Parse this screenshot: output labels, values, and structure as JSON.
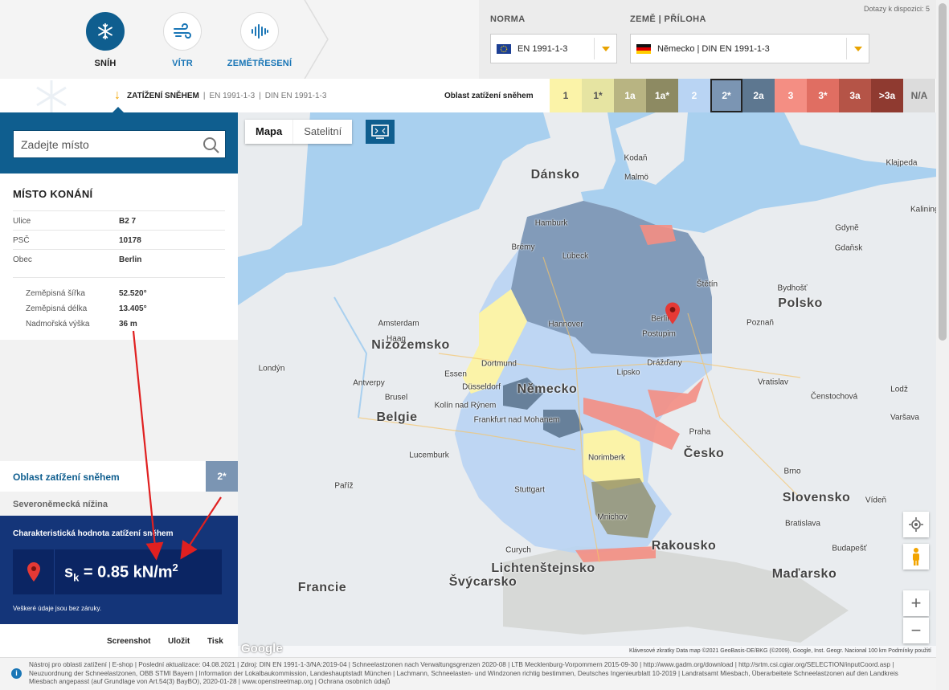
{
  "header": {
    "quota": "Dotazy k dispozici: 5",
    "modes": [
      {
        "label": "SNÍH",
        "icon": "snowflake-icon"
      },
      {
        "label": "VÍTR",
        "icon": "wind-icon"
      },
      {
        "label": "ZEMĚTŘESENÍ",
        "icon": "seismograph-icon"
      }
    ],
    "norma_label": "NORMA",
    "norma_value": "EN 1991-1-3",
    "zeme_label": "ZEMĚ | PŘÍLOHA",
    "zeme_value": "Německo | DIN EN 1991-1-3"
  },
  "bar": {
    "title": "ZATÍŽENÍ SNĚHEM",
    "norm1": "EN 1991-1-3",
    "norm2": "DIN EN 1991-1-3",
    "zones_label": "Oblast zatížení sněhem",
    "zones": [
      {
        "label": "1",
        "color": "#fbf3a8",
        "text": "#555"
      },
      {
        "label": "1*",
        "color": "#e6e4a2",
        "text": "#555"
      },
      {
        "label": "1a",
        "color": "#b8b482",
        "text": "#fff"
      },
      {
        "label": "1a*",
        "color": "#8d8a62",
        "text": "#fff"
      },
      {
        "label": "2",
        "color": "#b9d4f3",
        "text": "#fff"
      },
      {
        "label": "2*",
        "color": "#7b95b3",
        "text": "#fff",
        "selected": true
      },
      {
        "label": "2a",
        "color": "#5d7790",
        "text": "#fff"
      },
      {
        "label": "3",
        "color": "#f48e83",
        "text": "#fff"
      },
      {
        "label": "3*",
        "color": "#e06e62",
        "text": "#fff"
      },
      {
        "label": "3a",
        "color": "#b55447",
        "text": "#fff"
      },
      {
        "label": ">3a",
        "color": "#8f3a30",
        "text": "#fff"
      },
      {
        "label": "N/A",
        "color": "#dcdcdc",
        "text": "#666"
      }
    ]
  },
  "search": {
    "placeholder": "Zadejte místo"
  },
  "place": {
    "title": "MÍSTO KONÁNÍ",
    "rows": [
      {
        "k": "Ulice",
        "v": "B2 7"
      },
      {
        "k": "PSČ",
        "v": "10178"
      },
      {
        "k": "Obec",
        "v": "Berlin"
      }
    ],
    "coords": [
      {
        "k": "Zeměpisná šířka",
        "v": "52.520°"
      },
      {
        "k": "Zeměpisná délka",
        "v": "13.405°"
      },
      {
        "k": "Nadmořská výška",
        "v": "36 m"
      }
    ]
  },
  "zone_result": {
    "title": "Oblast zatížení sněhem",
    "badge": "2*",
    "region": "Severoněmecká nížina"
  },
  "result": {
    "heading": "Charakteristická hodnota zatížení sněhem",
    "symbol": "s",
    "subscript": "k",
    "value": " = 0.85 kN/m",
    "exponent": "2",
    "note": "Veškeré údaje jsou bez záruky."
  },
  "actions": {
    "screenshot": "Screenshot",
    "print": "Tisk",
    "save": "Uložit"
  },
  "map": {
    "type_map": "Mapa",
    "type_sat": "Satelitní",
    "google": "Google",
    "attribution": "Klávesové zkratky   Data map ©2021 GeoBasis-DE/BKG (©2009), Google, Inst. Geogr. Nacional   100 km   Podmínky použití",
    "country_labels": [
      {
        "t": "Dánsko"
      },
      {
        "t": "Nizozemsko"
      },
      {
        "t": "Belgie"
      },
      {
        "t": "Německo"
      },
      {
        "t": "Polsko"
      },
      {
        "t": "Česko"
      },
      {
        "t": "Slovensko"
      },
      {
        "t": "Rakousko"
      },
      {
        "t": "Maďarsko"
      },
      {
        "t": "Švýcarsko"
      },
      {
        "t": "Francie"
      },
      {
        "t": "Lichtenštejnsko"
      }
    ],
    "city_labels": [
      {
        "t": "Kodaň"
      },
      {
        "t": "Malmö"
      },
      {
        "t": "Hamburk"
      },
      {
        "t": "Brémy"
      },
      {
        "t": "Berlin"
      },
      {
        "t": "Postupim"
      },
      {
        "t": "Hannover"
      },
      {
        "t": "Amsterdam"
      },
      {
        "t": "Haag"
      },
      {
        "t": "Dortmund"
      },
      {
        "t": "Essen"
      },
      {
        "t": "Düsseldorf"
      },
      {
        "t": "Kolín nad Rýnem"
      },
      {
        "t": "Frankfurt nad Mohanem"
      },
      {
        "t": "Lipsko"
      },
      {
        "t": "Drážďany"
      },
      {
        "t": "Norimberk"
      },
      {
        "t": "Stuttgart"
      },
      {
        "t": "Mnichov"
      },
      {
        "t": "Praha"
      },
      {
        "t": "Štětín"
      },
      {
        "t": "Poznaň"
      },
      {
        "t": "Gdyně"
      },
      {
        "t": "Gdaňsk"
      },
      {
        "t": "Bydhošť"
      },
      {
        "t": "Vratislav"
      },
      {
        "t": "Čenstochová"
      },
      {
        "t": "Brno"
      },
      {
        "t": "Vídeň"
      },
      {
        "t": "Bratislava"
      },
      {
        "t": "Budapešť"
      },
      {
        "t": "Curych"
      },
      {
        "t": "Lucemburk"
      },
      {
        "t": "Paříž"
      },
      {
        "t": "Brusel"
      },
      {
        "t": "Antverpy"
      },
      {
        "t": "Londýn"
      },
      {
        "t": "Kaliningrad"
      },
      {
        "t": "Klajpeda"
      },
      {
        "t": "Lübeck"
      },
      {
        "t": "Lodž"
      },
      {
        "t": "Varšava"
      }
    ]
  },
  "footer": {
    "text": "Nástroj pro oblasti zatížení | E-shop | Poslední aktualizace: 04.08.2021 | Zdroj: DIN EN 1991-1-3/NA:2019-04 | Schneelastzonen nach Verwaltungsgrenzen 2020-08 | LTB Mecklenburg-Vorpommern 2015-09-30 | http://www.gadm.org/download | http://srtm.csi.cgiar.org/SELECTION/inputCoord.asp | Neuzuordnung der Schneelastzonen, OBB STMI Bayern | Information der Lokalbaukommission, Landeshauptstadt München | Lachmann, Schneelasten- und Windzonen richtig bestimmen, Deutsches Ingenieurblatt 10-2019 | Landratsamt Miesbach, Überarbeitete Schneelastzonen auf den Landkreis Miesbach angepasst (auf Grundlage von Art.54(3) BayBO), 2020-01-28 | www.openstreetmap.org | Ochrana osobních údajů"
  }
}
